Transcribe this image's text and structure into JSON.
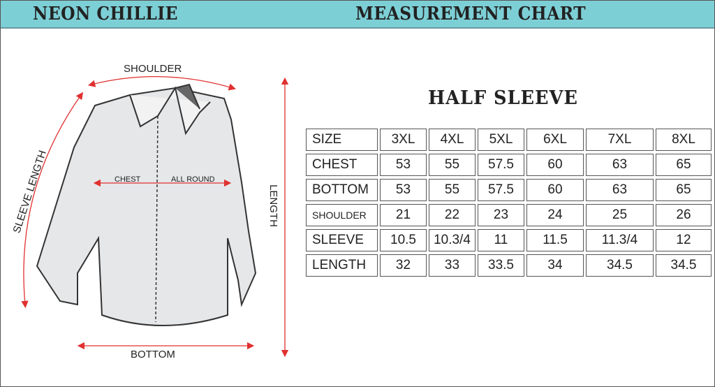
{
  "header": {
    "brand": "NEON CHILLIE",
    "title": "MEASUREMENT CHART"
  },
  "subtitle": "HALF SLEEVE",
  "diagram": {
    "shoulder": "SHOULDER",
    "sleeve_length": "SLEEVE LENGTH",
    "chest": "CHEST",
    "all_round": "ALL ROUND",
    "length": "LENGTH",
    "bottom": "BOTTOM",
    "arrow_color": "#e03030"
  },
  "table": {
    "rows": [
      {
        "label": "SIZE",
        "values": [
          "3XL",
          "4XL",
          "5XL",
          "6XL",
          "7XL",
          "8XL"
        ]
      },
      {
        "label": "CHEST",
        "values": [
          "53",
          "55",
          "57.5",
          "60",
          "63",
          "65"
        ]
      },
      {
        "label": "BOTTOM",
        "values": [
          "53",
          "55",
          "57.5",
          "60",
          "63",
          "65"
        ]
      },
      {
        "label": "SHOULDER",
        "values": [
          "21",
          "22",
          "23",
          "24",
          "25",
          "26"
        ]
      },
      {
        "label": "SLEEVE",
        "values": [
          "10.5",
          "10.3/4",
          "11",
          "11.5",
          "11.3/4",
          "12"
        ]
      },
      {
        "label": "LENGTH",
        "values": [
          "32",
          "33",
          "33.5",
          "34",
          "34.5",
          "34.5"
        ]
      }
    ]
  }
}
